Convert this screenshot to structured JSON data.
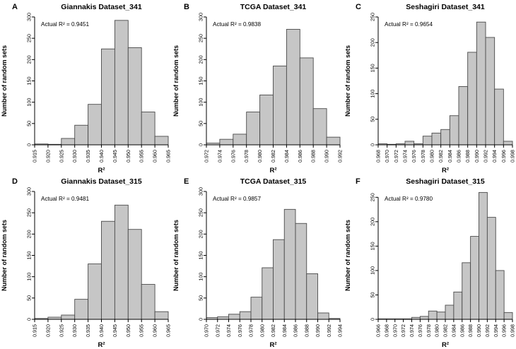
{
  "figure": {
    "background": "#ffffff",
    "bar_fill": "#c6c6c6",
    "bar_stroke": "#4a4a4a",
    "axis_color": "#000000",
    "text_color": "#000000",
    "xlabel": "R²",
    "ylabel": "Number of random sets"
  },
  "chart_data": [
    {
      "type": "bar",
      "panel_letter": "A",
      "title": "Giannakis Dataset_341",
      "annotation": "Actual R² = 0.9451",
      "xlabel": "R²",
      "ylabel": "Number of random sets",
      "x_tick_labels": [
        "0.915",
        "0.920",
        "0.925",
        "0.930",
        "0.935",
        "0.940",
        "0.945",
        "0.950",
        "0.955",
        "0.960",
        "0.965"
      ],
      "values": [
        2,
        1,
        15,
        46,
        95,
        225,
        292,
        228,
        77,
        20
      ],
      "y_ticks": [
        0,
        50,
        100,
        150,
        200,
        250,
        300
      ],
      "ylim": [
        0,
        300
      ],
      "grid": false,
      "legend": "none"
    },
    {
      "type": "bar",
      "panel_letter": "B",
      "title": "TCGA Dataset_341",
      "annotation": "Actual R² = 0.9838",
      "xlabel": "R²",
      "ylabel": "Number of random sets",
      "x_tick_labels": [
        "0.972",
        "0.974",
        "0.976",
        "0.978",
        "0.980",
        "0.982",
        "0.984",
        "0.986",
        "0.988",
        "0.990",
        "0.992"
      ],
      "values": [
        4,
        13,
        25,
        77,
        117,
        185,
        271,
        204,
        85,
        18
      ],
      "y_ticks": [
        0,
        50,
        100,
        150,
        200,
        250,
        300
      ],
      "ylim": [
        0,
        300
      ],
      "grid": false,
      "legend": "none"
    },
    {
      "type": "bar",
      "panel_letter": "C",
      "title": "Seshagiri Dataset_341",
      "annotation": "Actual R² = 0.9654",
      "xlabel": "R²",
      "ylabel": "Number of random sets",
      "x_tick_labels": [
        "0.968",
        "0.970",
        "0.972",
        "0.974",
        "0.976",
        "0.978",
        "0.980",
        "0.982",
        "0.984",
        "0.986",
        "0.988",
        "0.990",
        "0.992",
        "0.994",
        "0.996",
        "0.998"
      ],
      "values": [
        2,
        1,
        2,
        7,
        2,
        17,
        23,
        30,
        57,
        114,
        181,
        240,
        210,
        109,
        7
      ],
      "y_ticks": [
        0,
        50,
        100,
        150,
        200,
        250
      ],
      "ylim": [
        0,
        250
      ],
      "grid": false,
      "legend": "none"
    },
    {
      "type": "bar",
      "panel_letter": "D",
      "title": "Giannakis Dataset_315",
      "annotation": "Actual R² = 0.9481",
      "xlabel": "R²",
      "ylabel": "Number of random sets",
      "x_tick_labels": [
        "0.915",
        "0.920",
        "0.925",
        "0.930",
        "0.935",
        "0.940",
        "0.945",
        "0.950",
        "0.955",
        "0.960",
        "0.965"
      ],
      "values": [
        2,
        5,
        10,
        47,
        130,
        230,
        268,
        211,
        82,
        18
      ],
      "y_ticks": [
        0,
        50,
        100,
        150,
        200,
        250,
        300
      ],
      "ylim": [
        0,
        300
      ],
      "grid": false,
      "legend": "none"
    },
    {
      "type": "bar",
      "panel_letter": "E",
      "title": "TCGA Dataset_315",
      "annotation": "Actual R² = 0.9857",
      "xlabel": "R²",
      "ylabel": "Number of random sets",
      "x_tick_labels": [
        "0.970",
        "0.972",
        "0.974",
        "0.976",
        "0.978",
        "0.980",
        "0.982",
        "0.984",
        "0.986",
        "0.988",
        "0.990",
        "0.992",
        "0.994"
      ],
      "values": [
        4,
        6,
        12,
        18,
        52,
        121,
        187,
        258,
        225,
        107,
        15,
        2
      ],
      "y_ticks": [
        0,
        50,
        100,
        150,
        200,
        250,
        300
      ],
      "ylim": [
        0,
        300
      ],
      "grid": false,
      "legend": "none"
    },
    {
      "type": "bar",
      "panel_letter": "F",
      "title": "Seshagiri Dataset_315",
      "annotation": "Actual R² = 0.9780",
      "xlabel": "R²",
      "ylabel": "Number of random sets",
      "x_tick_labels": [
        "0.966",
        "0.968",
        "0.970",
        "0.972",
        "0.974",
        "0.976",
        "0.978",
        "0.980",
        "0.982",
        "0.984",
        "0.986",
        "0.988",
        "0.990",
        "0.992",
        "0.994",
        "0.996",
        "0.998"
      ],
      "values": [
        1,
        1,
        1,
        1,
        4,
        6,
        17,
        15,
        29,
        56,
        116,
        170,
        260,
        209,
        100,
        14
      ],
      "y_ticks": [
        0,
        50,
        100,
        150,
        200,
        250
      ],
      "ylim": [
        0,
        262
      ],
      "grid": false,
      "legend": "none"
    }
  ]
}
